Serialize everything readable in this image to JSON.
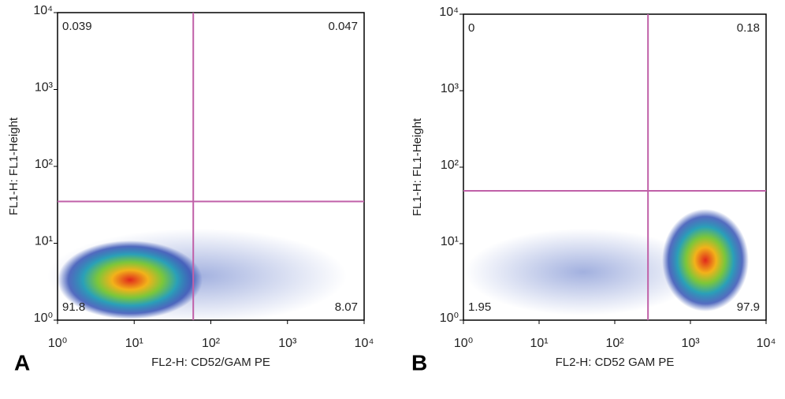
{
  "chart_data": [
    {
      "type": "scatter",
      "panel": "A",
      "x_label": "FL2-H: CD52/GAM PE",
      "y_label": "FL1-H:   FL1-Height",
      "log_x": true,
      "log_y": true,
      "xlim": [
        1,
        10000
      ],
      "ylim": [
        1,
        10000
      ],
      "xticks": [
        {
          "value": 1,
          "label": "10⁰"
        },
        {
          "value": 10,
          "label": "10¹"
        },
        {
          "value": 100,
          "label": "10²"
        },
        {
          "value": 1000,
          "label": "10³"
        },
        {
          "value": 10000,
          "label": "10⁴"
        }
      ],
      "yticks": [
        {
          "value": 1,
          "label": "10⁰"
        },
        {
          "value": 10,
          "label": "10¹"
        },
        {
          "value": 100,
          "label": "10²"
        },
        {
          "value": 1000,
          "label": "10³"
        },
        {
          "value": 10000,
          "label": "10⁴"
        }
      ],
      "gates": {
        "x": 59,
        "y": 35
      },
      "gate_color": "#c060a8",
      "quadrants": [
        0.039,
        0.047,
        91.8,
        8.07
      ]
    },
    {
      "type": "scatter",
      "panel": "B",
      "x_label": "FL2-H: CD52 GAM PE",
      "y_label": "FL1-H:   FL1-Height",
      "log_x": true,
      "log_y": true,
      "xlim": [
        1,
        10000
      ],
      "ylim": [
        1,
        10000
      ],
      "xticks": [
        {
          "value": 1,
          "label": "10⁰"
        },
        {
          "value": 10,
          "label": "10¹"
        },
        {
          "value": 100,
          "label": "10²"
        },
        {
          "value": 1000,
          "label": "10³"
        },
        {
          "value": 10000,
          "label": "10⁴"
        }
      ],
      "yticks": [
        {
          "value": 1,
          "label": "10⁰"
        },
        {
          "value": 10,
          "label": "10¹"
        },
        {
          "value": 100,
          "label": "10²"
        },
        {
          "value": 1000,
          "label": "10³"
        },
        {
          "value": 10000,
          "label": "10⁴"
        }
      ],
      "gates": {
        "x": 275,
        "y": 49
      },
      "gate_color": "#c060a8",
      "quadrants": [
        0,
        0.18,
        1.95,
        97.9
      ]
    }
  ]
}
